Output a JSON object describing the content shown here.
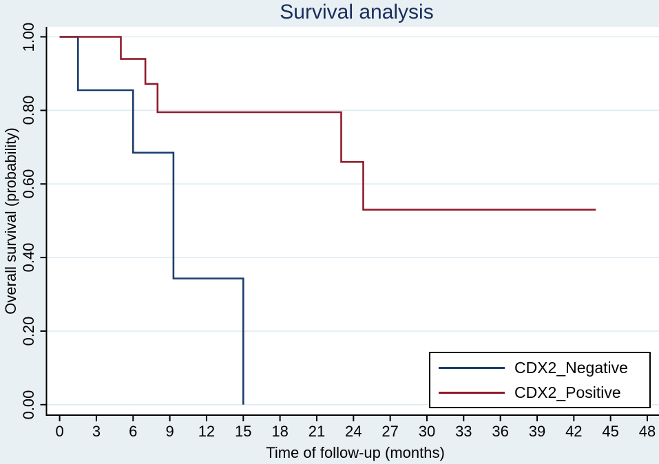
{
  "title": "Survival analysis",
  "colors": {
    "background": "#e9f0f3",
    "plot_background": "#ffffff",
    "gridline": "#dfebf2",
    "axis": "#000000",
    "title_text": "#1a2e5c",
    "negative_line": "#1c3e6e",
    "positive_line": "#8f1c2c"
  },
  "chart_data": {
    "type": "line",
    "subtype": "kaplan_meier_step",
    "title": "Survival analysis",
    "xlabel": "Time of follow-up (months)",
    "ylabel": "Overall survival (probability)",
    "xlim": [
      0,
      48
    ],
    "ylim": [
      0.0,
      1.0
    ],
    "grid": "horizontal-only",
    "legend_position": "bottom-right",
    "x_ticks": [
      "0",
      "3",
      "6",
      "9",
      "12",
      "15",
      "18",
      "21",
      "24",
      "27",
      "30",
      "33",
      "36",
      "39",
      "42",
      "45",
      "48"
    ],
    "x_tick_values": [
      0,
      3,
      6,
      9,
      12,
      15,
      18,
      21,
      24,
      27,
      30,
      33,
      36,
      39,
      42,
      45,
      48
    ],
    "y_ticks": [
      "0.00",
      "0.20",
      "0.40",
      "0.60",
      "0.80",
      "1.00"
    ],
    "y_tick_values": [
      0.0,
      0.2,
      0.4,
      0.6,
      0.8,
      1.0
    ],
    "series": [
      {
        "name": "CDX2_Negative",
        "color": "#1c3e6e",
        "points": [
          [
            0,
            1.0
          ],
          [
            1.5,
            1.0
          ],
          [
            1.5,
            0.855
          ],
          [
            6,
            0.855
          ],
          [
            6,
            0.685
          ],
          [
            9.3,
            0.685
          ],
          [
            9.3,
            0.343
          ],
          [
            15,
            0.343
          ],
          [
            15,
            0.0
          ]
        ]
      },
      {
        "name": "CDX2_Positive",
        "color": "#8f1c2c",
        "points": [
          [
            0,
            1.0
          ],
          [
            5,
            1.0
          ],
          [
            5,
            0.94
          ],
          [
            7,
            0.94
          ],
          [
            7,
            0.872
          ],
          [
            8,
            0.872
          ],
          [
            8,
            0.795
          ],
          [
            23,
            0.795
          ],
          [
            23,
            0.66
          ],
          [
            24.8,
            0.66
          ],
          [
            24.8,
            0.53
          ],
          [
            43.8,
            0.53
          ]
        ]
      }
    ]
  }
}
